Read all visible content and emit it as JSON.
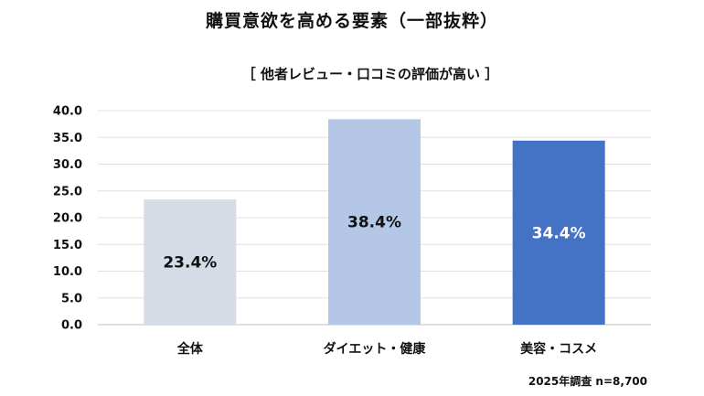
{
  "chart_data": {
    "type": "bar",
    "title": "購買意欲を高める要素（一部抜粋）",
    "subtitle": "［ 他者レビュー・口コミの評価が高い ］",
    "categories": [
      "全体",
      "ダイエット・健康",
      "美容・コスメ"
    ],
    "values": [
      23.4,
      38.4,
      34.4
    ],
    "data_labels": [
      "23.4%",
      "38.4%",
      "34.4%"
    ],
    "bar_colors": [
      "#d6dce5",
      "#b4c7e7",
      "#4472c4"
    ],
    "data_label_colors": [
      "#111111",
      "#111111",
      "#ffffff"
    ],
    "ylim": [
      0,
      40
    ],
    "yticks": [
      "0.0",
      "5.0",
      "10.0",
      "15.0",
      "20.0",
      "25.0",
      "30.0",
      "35.0",
      "40.0"
    ],
    "grid": true,
    "legend": "none",
    "note": "2025年調査 n=8,700"
  }
}
